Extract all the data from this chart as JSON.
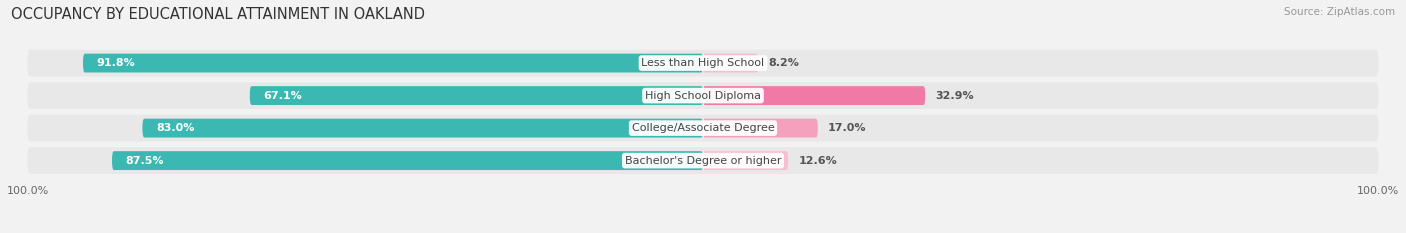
{
  "title": "OCCUPANCY BY EDUCATIONAL ATTAINMENT IN OAKLAND",
  "source": "Source: ZipAtlas.com",
  "categories": [
    "Less than High School",
    "High School Diploma",
    "College/Associate Degree",
    "Bachelor's Degree or higher"
  ],
  "owner_pct": [
    91.8,
    67.1,
    83.0,
    87.5
  ],
  "renter_pct": [
    8.2,
    32.9,
    17.0,
    12.6
  ],
  "owner_color": "#3BB8B2",
  "renter_color_low": "#F9BDD0",
  "renter_color_high": "#F07AA5",
  "renter_colors": [
    "#F9BDD0",
    "#F07AA5",
    "#F5A0BC",
    "#F9BDD0"
  ],
  "bg_color": "#f2f2f2",
  "row_bg_color": "#e8e8e8",
  "title_fontsize": 10.5,
  "label_fontsize": 8.0,
  "pct_fontsize": 8.0,
  "tick_fontsize": 8.0,
  "source_fontsize": 7.5,
  "legend_fontsize": 8.0
}
